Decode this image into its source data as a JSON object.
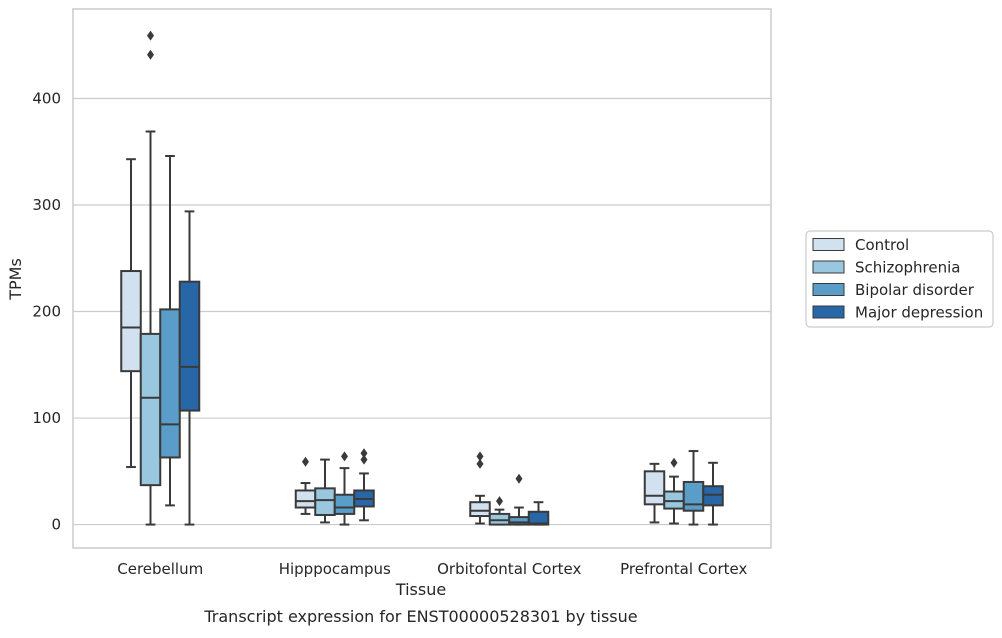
{
  "chart_data": {
    "type": "box",
    "caption": "Transcript expression for ENST00000528301 by tissue",
    "xlabel": "Tissue",
    "ylabel": "TPMs",
    "ylim": [
      -22,
      484
    ],
    "yticks": [
      0,
      100,
      200,
      300,
      400
    ],
    "grid": "horizontal",
    "legend_position": "right",
    "categories": [
      "Cerebellum",
      "Hipppocampus",
      "Orbitofontal Cortex",
      "Prefrontal Cortex"
    ],
    "series": [
      {
        "name": "Control",
        "color": "#d1e1f0",
        "boxes": [
          {
            "min": 54,
            "q1": 144,
            "median": 185,
            "q3": 238,
            "max": 343,
            "outliers": []
          },
          {
            "min": 10,
            "q1": 16,
            "median": 22,
            "q3": 32,
            "max": 39,
            "outliers": [
              59
            ]
          },
          {
            "min": 1,
            "q1": 8,
            "median": 13,
            "q3": 21,
            "max": 27,
            "outliers": [
              57,
              64
            ]
          },
          {
            "min": 2,
            "q1": 19,
            "median": 27,
            "q3": 50,
            "max": 57,
            "outliers": []
          }
        ]
      },
      {
        "name": "Schizophrenia",
        "color": "#9ac7e0",
        "boxes": [
          {
            "min": 0,
            "q1": 37,
            "median": 119,
            "q3": 179,
            "max": 369,
            "outliers": [
              441,
              459
            ]
          },
          {
            "min": 2,
            "q1": 9,
            "median": 23,
            "q3": 34,
            "max": 61,
            "outliers": []
          },
          {
            "min": 0,
            "q1": 0,
            "median": 4,
            "q3": 10,
            "max": 14,
            "outliers": [
              22
            ]
          },
          {
            "min": 1,
            "q1": 15,
            "median": 22,
            "q3": 31,
            "max": 45,
            "outliers": [
              58
            ]
          }
        ]
      },
      {
        "name": "Bipolar disorder",
        "color": "#5a9dc9",
        "boxes": [
          {
            "min": 18,
            "q1": 63,
            "median": 94,
            "q3": 202,
            "max": 346,
            "outliers": []
          },
          {
            "min": 0,
            "q1": 10,
            "median": 16,
            "q3": 28,
            "max": 53,
            "outliers": [
              64
            ]
          },
          {
            "min": 0,
            "q1": 0,
            "median": 2,
            "q3": 7,
            "max": 16,
            "outliers": [
              43
            ]
          },
          {
            "min": 0,
            "q1": 13,
            "median": 19,
            "q3": 40,
            "max": 69,
            "outliers": []
          }
        ]
      },
      {
        "name": "Major depression",
        "color": "#2767a8",
        "boxes": [
          {
            "min": 0,
            "q1": 107,
            "median": 148,
            "q3": 228,
            "max": 294,
            "outliers": []
          },
          {
            "min": 4,
            "q1": 17,
            "median": 24,
            "q3": 32,
            "max": 48,
            "outliers": [
              61,
              67
            ]
          },
          {
            "min": 0,
            "q1": 0,
            "median": 1,
            "q3": 12,
            "max": 21,
            "outliers": []
          },
          {
            "min": 0,
            "q1": 18,
            "median": 28,
            "q3": 36,
            "max": 58,
            "outliers": []
          }
        ]
      }
    ]
  }
}
